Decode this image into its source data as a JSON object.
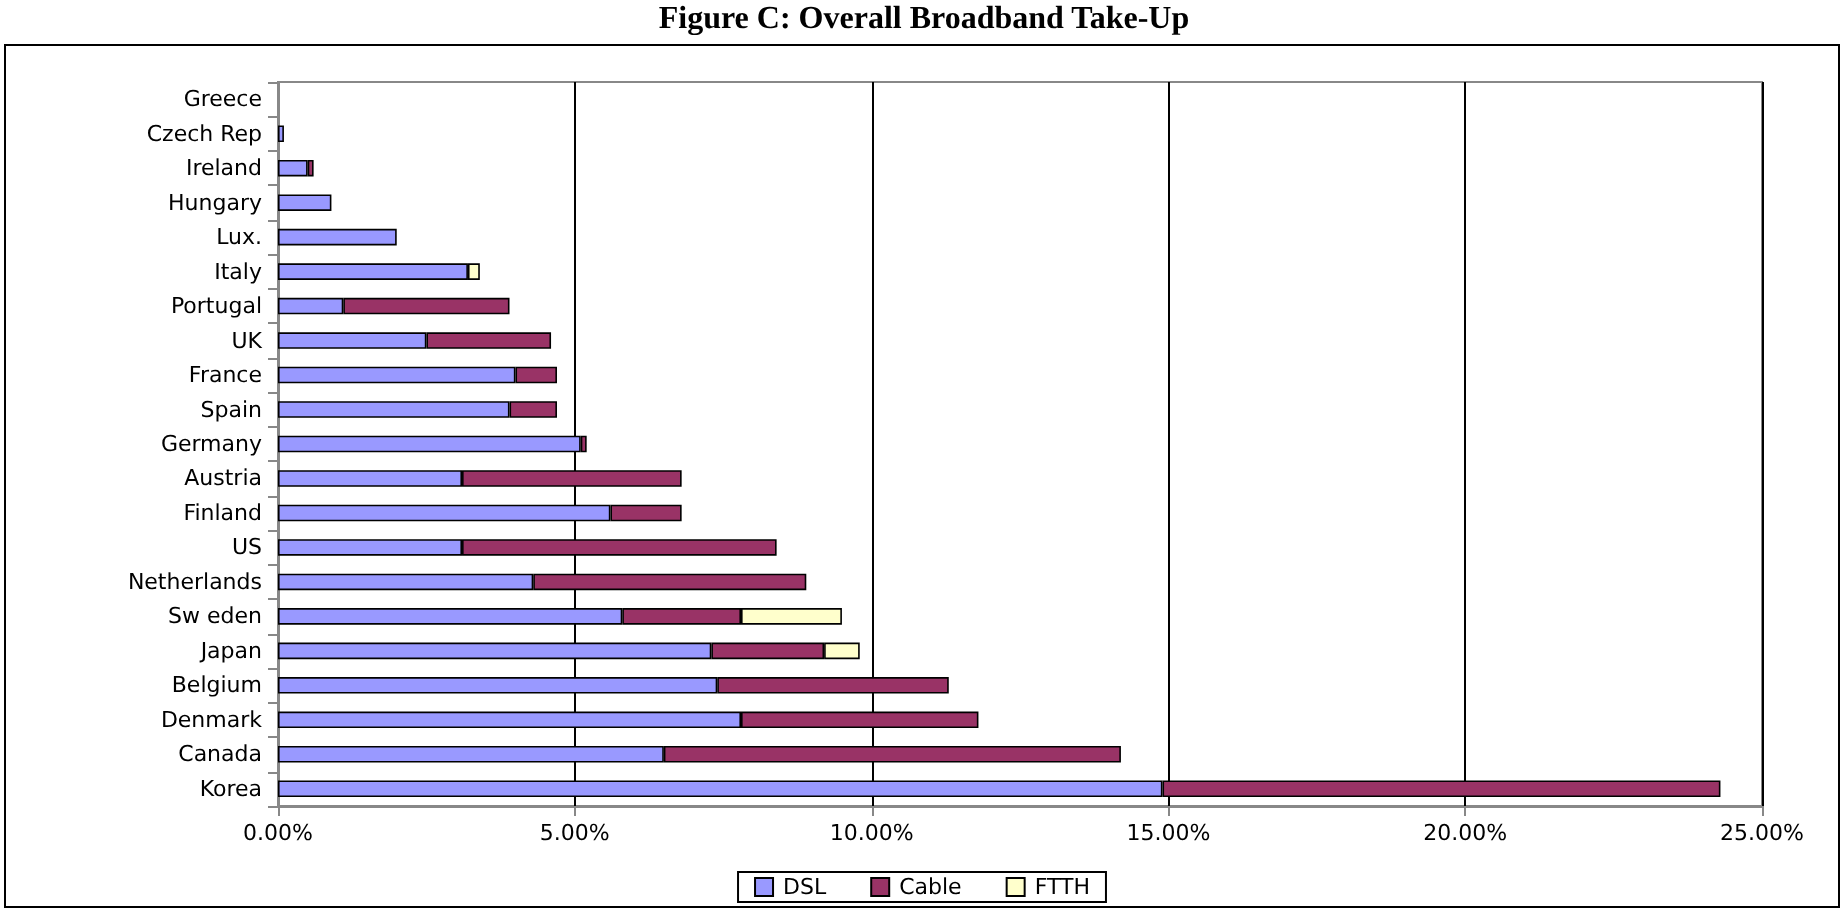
{
  "chart_data": {
    "type": "bar",
    "title": "Figure C: Overall Broadband Take-Up",
    "orientation": "horizontal",
    "stacked": true,
    "categories": [
      "Greece",
      "Czech Rep",
      "Ireland",
      "Hungary",
      "Lux.",
      "Italy",
      "Portugal",
      "UK",
      "France",
      "Spain",
      "Germany",
      "Austria",
      "Finland",
      "US",
      "Netherlands",
      "Sw eden",
      "Japan",
      "Belgium",
      "Denmark",
      "Canada",
      "Korea"
    ],
    "series": [
      {
        "name": "DSL",
        "color": "#9999ff",
        "values": [
          null,
          0.1,
          0.5,
          0.9,
          2.0,
          3.2,
          1.1,
          2.5,
          4.0,
          3.9,
          5.1,
          3.1,
          5.6,
          3.1,
          4.3,
          5.8,
          7.3,
          7.4,
          7.8,
          6.5,
          14.9
        ]
      },
      {
        "name": "Cable",
        "color": "#993366",
        "values": [
          0,
          0,
          0.1,
          0,
          0,
          0,
          2.8,
          2.1,
          0.7,
          0.8,
          0.1,
          3.7,
          1.2,
          5.3,
          4.6,
          2.0,
          1.9,
          3.9,
          4.0,
          7.7,
          9.4
        ]
      },
      {
        "name": "FTTH",
        "color": "#ffffcc",
        "values": [
          0,
          0,
          0,
          0,
          0,
          0.2,
          0,
          0,
          0,
          0,
          0,
          0,
          0,
          0,
          0,
          1.7,
          0.6,
          0,
          0,
          0,
          0
        ]
      }
    ],
    "xlim": [
      0,
      25
    ],
    "xticks": [
      {
        "value": 0,
        "label": "0.00%"
      },
      {
        "value": 5,
        "label": "5.00%"
      },
      {
        "value": 10,
        "label": "10.00%"
      },
      {
        "value": 15,
        "label": "15.00%"
      },
      {
        "value": 20,
        "label": "20.00%"
      },
      {
        "value": 25,
        "label": "25.00%"
      }
    ],
    "grid": "x",
    "legend": "bottom"
  }
}
